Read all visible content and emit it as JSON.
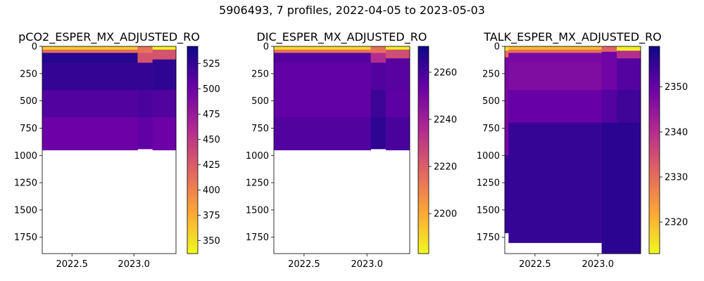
{
  "suptitle": "5906493, 7 profiles, 2022-04-05 to 2023-05-03",
  "colormap": [
    "#f0f921",
    "#fca636",
    "#e16462",
    "#b12a90",
    "#6a00a8",
    "#0d0887"
  ],
  "chart_data": [
    {
      "type": "heatmap",
      "title": "pCO2_ESPER_MX_ADJUSTED_RO",
      "xlabel": "",
      "ylabel": "",
      "xlim": [
        2022.26,
        2023.34
      ],
      "ylim": [
        1900,
        0
      ],
      "x_ticks": [
        "2022.5",
        "2023.0"
      ],
      "x_tick_values": [
        2022.5,
        2023.0
      ],
      "y_ticks": [
        "0",
        "250",
        "500",
        "750",
        "1000",
        "1250",
        "1500",
        "1750"
      ],
      "y_tick_values": [
        0,
        250,
        500,
        750,
        1000,
        1250,
        1500,
        1750
      ],
      "colorbar": {
        "range": [
          337,
          542
        ],
        "ticks": [
          "350",
          "375",
          "400",
          "425",
          "450",
          "475",
          "500",
          "525"
        ],
        "tick_values": [
          350,
          375,
          400,
          425,
          450,
          475,
          500,
          525
        ]
      },
      "profiles": [
        {
          "x0": 2022.26,
          "x1": 2023.03,
          "max_depth": 950,
          "layers": [
            [
              0,
              30,
              360
            ],
            [
              30,
              60,
              415
            ],
            [
              60,
              150,
              532
            ],
            [
              150,
              400,
              525
            ],
            [
              400,
              650,
              512
            ],
            [
              650,
              950,
              500
            ]
          ]
        },
        {
          "x0": 2023.03,
          "x1": 2023.15,
          "max_depth": 940,
          "layers": [
            [
              0,
              60,
              410
            ],
            [
              60,
              150,
              430
            ],
            [
              150,
              400,
              525
            ],
            [
              400,
              650,
              515
            ],
            [
              650,
              940,
              505
            ]
          ]
        },
        {
          "x0": 2023.15,
          "x1": 2023.34,
          "max_depth": 950,
          "layers": [
            [
              0,
              30,
              340
            ],
            [
              30,
              120,
              430
            ],
            [
              120,
              400,
              528
            ],
            [
              400,
              650,
              512
            ],
            [
              650,
              950,
              500
            ]
          ]
        }
      ]
    },
    {
      "type": "heatmap",
      "title": "DIC_ESPER_MX_ADJUSTED_RO",
      "xlabel": "",
      "ylabel": "",
      "xlim": [
        2022.26,
        2023.34
      ],
      "ylim": [
        1900,
        0
      ],
      "x_ticks": [
        "2022.5",
        "2023.0"
      ],
      "x_tick_values": [
        2022.5,
        2023.0
      ],
      "y_ticks": [
        "0",
        "250",
        "500",
        "750",
        "1000",
        "1250",
        "1500",
        "1750"
      ],
      "y_tick_values": [
        0,
        250,
        500,
        750,
        1000,
        1250,
        1500,
        1750
      ],
      "colorbar": {
        "range": [
          2183,
          2271
        ],
        "ticks": [
          "2200",
          "2220",
          "2240",
          "2260"
        ],
        "tick_values": [
          2200,
          2220,
          2240,
          2260
        ]
      },
      "profiles": [
        {
          "x0": 2022.26,
          "x1": 2023.03,
          "max_depth": 950,
          "layers": [
            [
              0,
              30,
              2190
            ],
            [
              30,
              60,
              2215
            ],
            [
              60,
              150,
              2258
            ],
            [
              150,
              400,
              2255
            ],
            [
              400,
              650,
              2255
            ],
            [
              650,
              950,
              2258
            ]
          ]
        },
        {
          "x0": 2023.03,
          "x1": 2023.15,
          "max_depth": 940,
          "layers": [
            [
              0,
              60,
              2215
            ],
            [
              60,
              150,
              2235
            ],
            [
              150,
              400,
              2258
            ],
            [
              400,
              650,
              2262
            ],
            [
              650,
              940,
              2265
            ]
          ]
        },
        {
          "x0": 2023.15,
          "x1": 2023.34,
          "max_depth": 950,
          "layers": [
            [
              0,
              30,
              2185
            ],
            [
              30,
              110,
              2225
            ],
            [
              110,
              400,
              2257
            ],
            [
              400,
              650,
              2256
            ],
            [
              650,
              950,
              2260
            ]
          ]
        }
      ]
    },
    {
      "type": "heatmap",
      "title": "TALK_ESPER_MX_ADJUSTED_RO",
      "xlabel": "",
      "ylabel": "",
      "xlim": [
        2022.26,
        2023.34
      ],
      "ylim": [
        1900,
        0
      ],
      "x_ticks": [
        "2022.5",
        "2023.0"
      ],
      "x_tick_values": [
        2022.5,
        2023.0
      ],
      "y_ticks": [
        "0",
        "250",
        "500",
        "750",
        "1000",
        "1250",
        "1500",
        "1750"
      ],
      "y_tick_values": [
        0,
        250,
        500,
        750,
        1000,
        1250,
        1500,
        1750
      ],
      "colorbar": {
        "range": [
          2313,
          2359
        ],
        "ticks": [
          "2320",
          "2330",
          "2340",
          "2350"
        ],
        "tick_values": [
          2320,
          2330,
          2340,
          2350
        ]
      },
      "profiles": [
        {
          "x0": 2022.26,
          "x1": 2022.29,
          "max_depth": 1710,
          "layers": [
            [
              0,
              40,
              2316
            ],
            [
              40,
              100,
              2330
            ],
            [
              100,
              1000,
              2348
            ],
            [
              1000,
              1710,
              2355
            ]
          ]
        },
        {
          "x0": 2022.29,
          "x1": 2023.03,
          "max_depth": 1800,
          "layers": [
            [
              0,
              30,
              2320
            ],
            [
              30,
              60,
              2330
            ],
            [
              60,
              150,
              2348
            ],
            [
              150,
              400,
              2347
            ],
            [
              400,
              700,
              2350
            ],
            [
              700,
              1800,
              2355
            ]
          ]
        },
        {
          "x0": 2023.03,
          "x1": 2023.15,
          "max_depth": 1900,
          "layers": [
            [
              0,
              50,
              2332
            ],
            [
              50,
              400,
              2349
            ],
            [
              400,
              700,
              2352
            ],
            [
              700,
              1900,
              2356
            ]
          ]
        },
        {
          "x0": 2023.15,
          "x1": 2023.34,
          "max_depth": 1900,
          "layers": [
            [
              0,
              40,
              2314
            ],
            [
              40,
              110,
              2340
            ],
            [
              110,
              400,
              2352
            ],
            [
              400,
              700,
              2354
            ],
            [
              700,
              1900,
              2356
            ]
          ]
        }
      ]
    }
  ]
}
